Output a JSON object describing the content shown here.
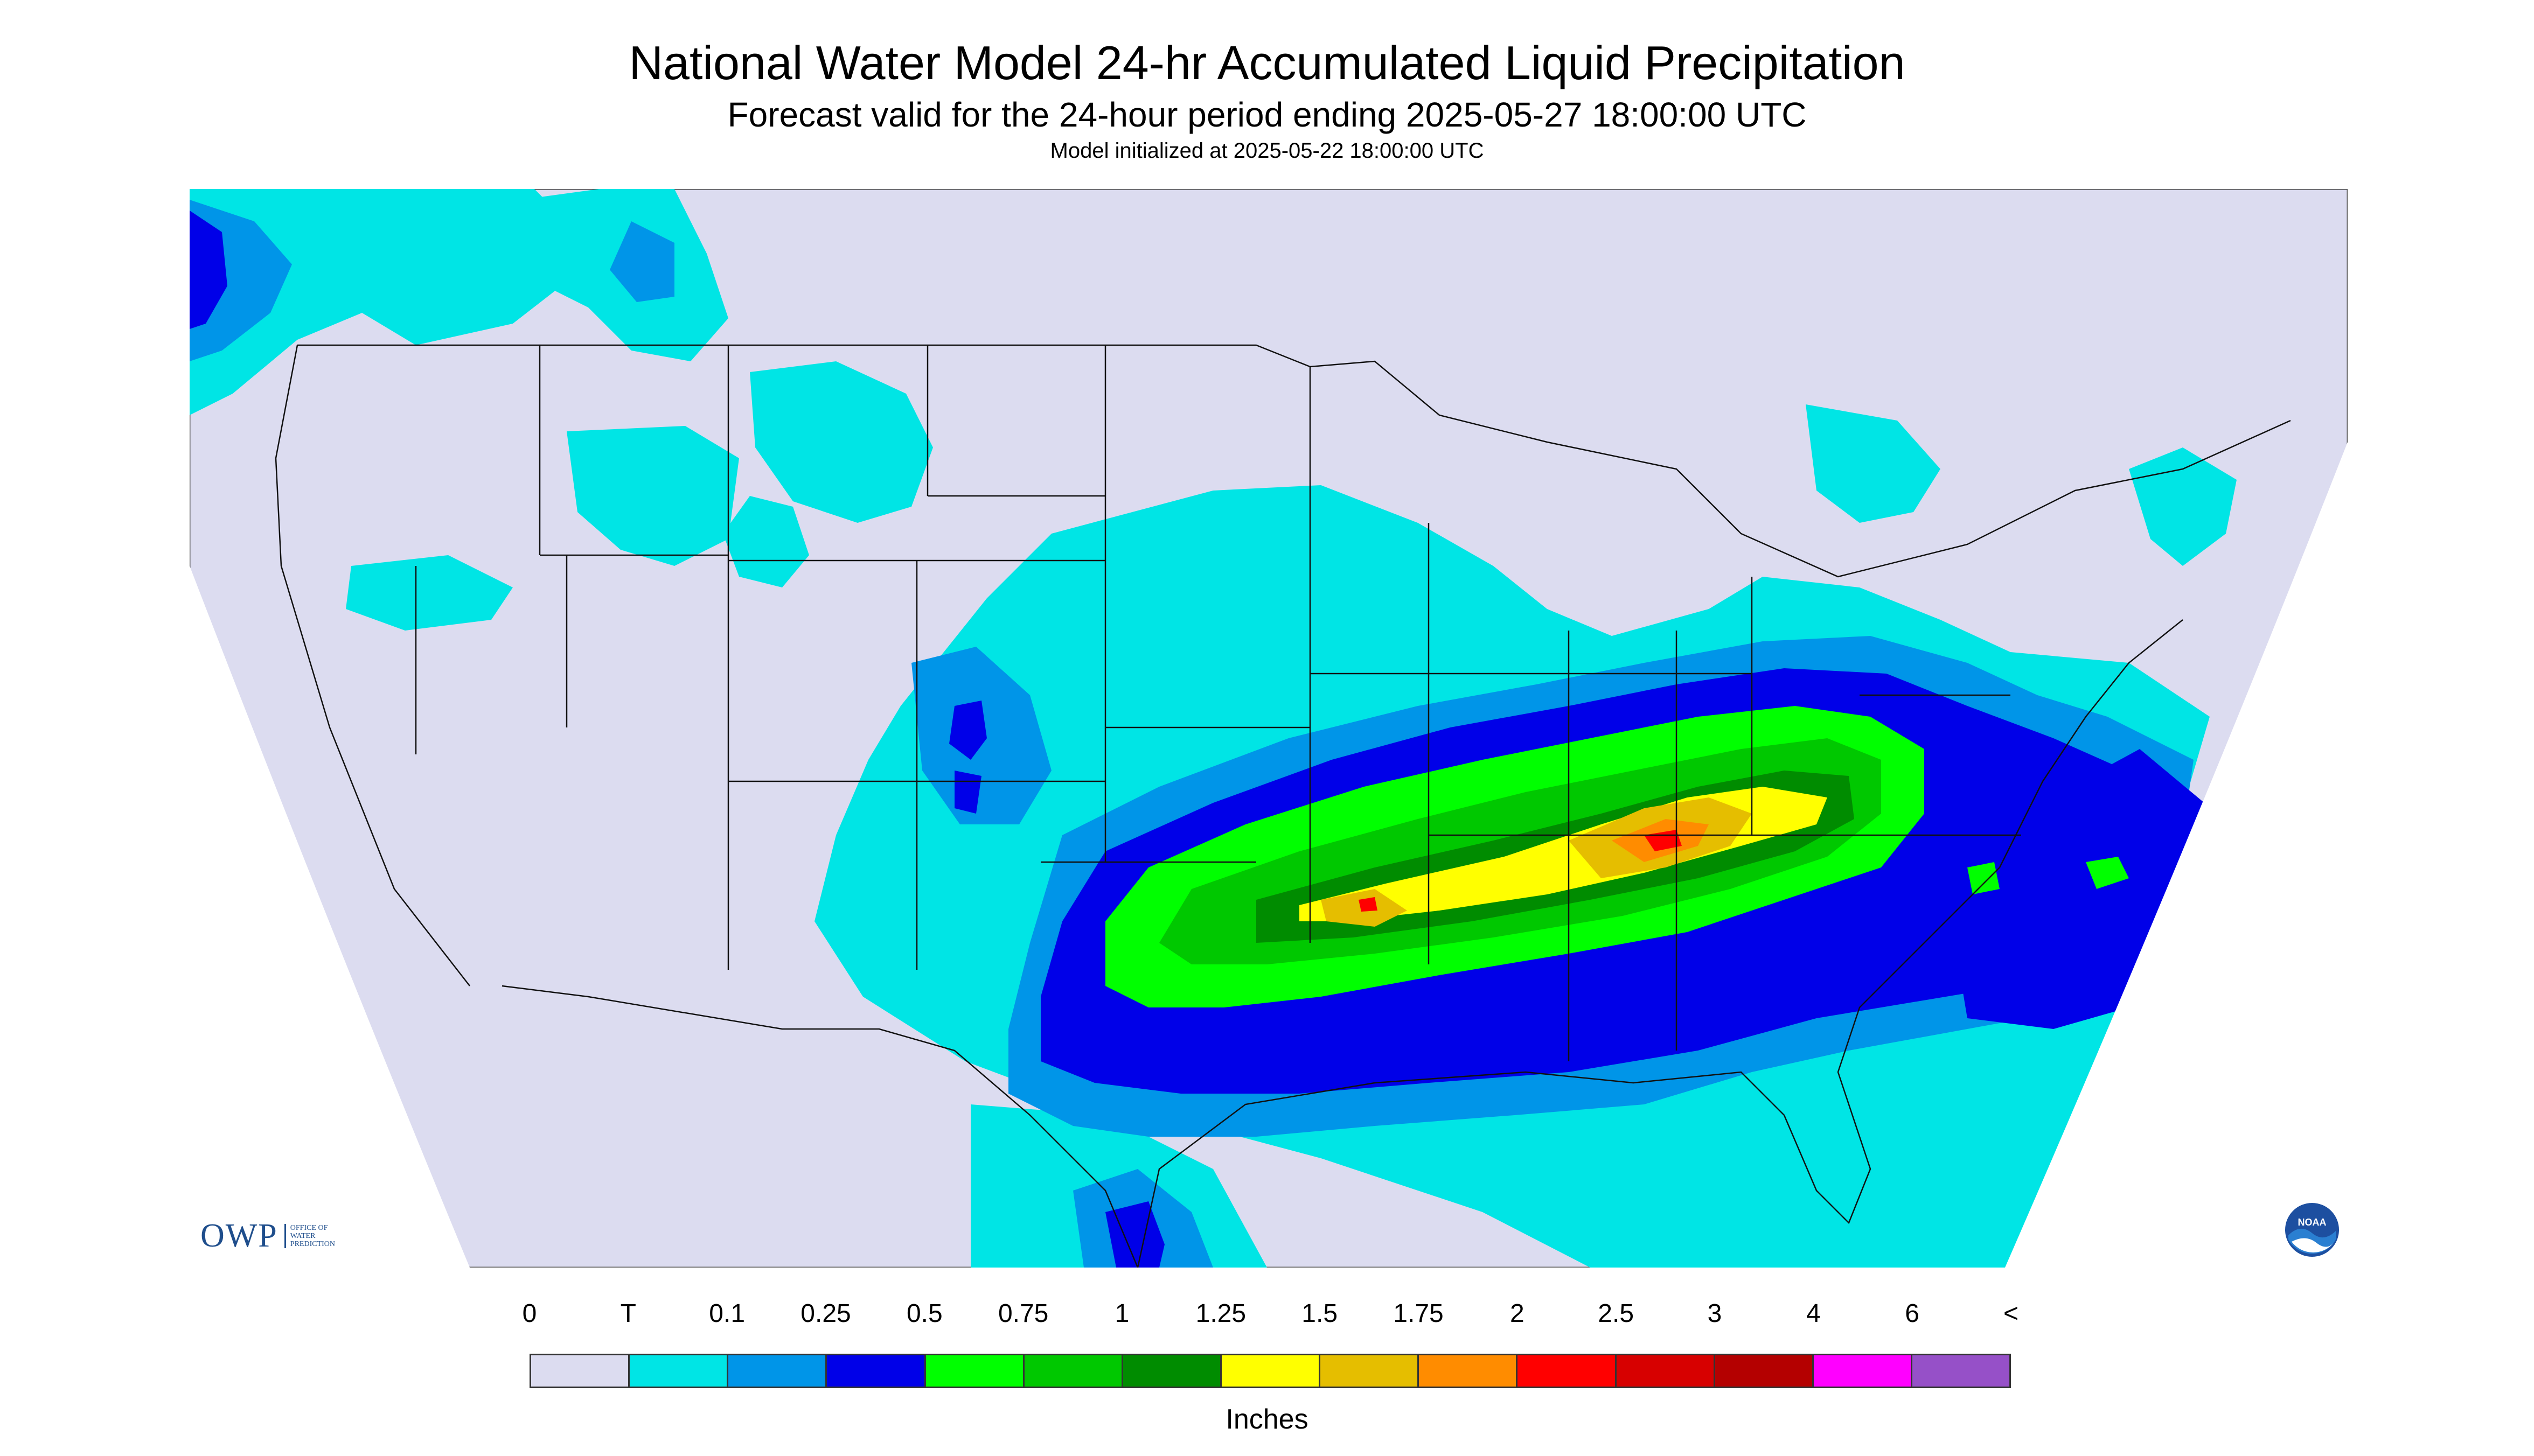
{
  "header": {
    "title": "National Water Model 24-hr Accumulated Liquid Precipitation",
    "subtitle": "Forecast valid for the 24-hour period ending 2025-05-27 18:00:00 UTC",
    "init": "Model initialized at 2025-05-22 18:00:00 UTC"
  },
  "legend": {
    "ticks": [
      "0",
      "T",
      "0.1",
      "0.25",
      "0.5",
      "0.75",
      "1",
      "1.25",
      "1.5",
      "1.75",
      "2",
      "2.5",
      "3",
      "4",
      "6",
      "<"
    ],
    "colors": [
      "#dcdcf0",
      "#00e5e5",
      "#0095e8",
      "#0000e8",
      "#00ff00",
      "#00c800",
      "#008c00",
      "#ffff00",
      "#e5be00",
      "#ff8c00",
      "#ff0000",
      "#d70000",
      "#b40000",
      "#ff00ff",
      "#9650c8"
    ],
    "units": "Inches"
  },
  "logos": {
    "owp": "OWP",
    "owp_sub": "OFFICE OF\nWATER\nPREDICTION",
    "noaa": "NOAA"
  },
  "colors": {
    "background": "#dcdcf0",
    "boundary": "#000000"
  }
}
